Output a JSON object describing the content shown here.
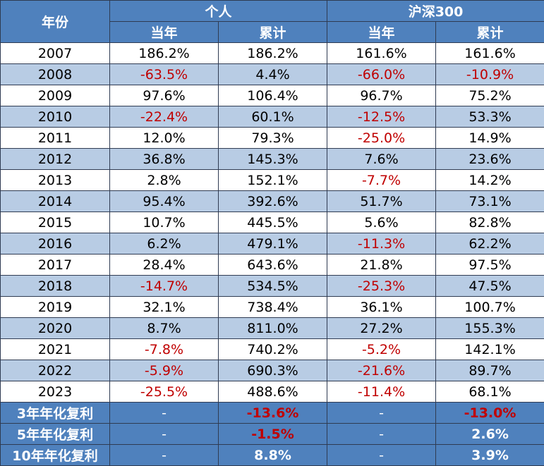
{
  "header": {
    "year_label": "年份",
    "group_personal": "个人",
    "group_index": "沪深300",
    "col_annual": "当年",
    "col_cumulative": "累计"
  },
  "rows": [
    {
      "year": "2007",
      "p_annual": "186.2%",
      "p_cum": "186.2%",
      "i_annual": "161.6%",
      "i_cum": "161.6%"
    },
    {
      "year": "2008",
      "p_annual": "-63.5%",
      "p_cum": "4.4%",
      "i_annual": "-66.0%",
      "i_cum": "-10.9%"
    },
    {
      "year": "2009",
      "p_annual": "97.6%",
      "p_cum": "106.4%",
      "i_annual": "96.7%",
      "i_cum": "75.2%"
    },
    {
      "year": "2010",
      "p_annual": "-22.4%",
      "p_cum": "60.1%",
      "i_annual": "-12.5%",
      "i_cum": "53.3%"
    },
    {
      "year": "2011",
      "p_annual": "12.0%",
      "p_cum": "79.3%",
      "i_annual": "-25.0%",
      "i_cum": "14.9%"
    },
    {
      "year": "2012",
      "p_annual": "36.8%",
      "p_cum": "145.3%",
      "i_annual": "7.6%",
      "i_cum": "23.6%"
    },
    {
      "year": "2013",
      "p_annual": "2.8%",
      "p_cum": "152.1%",
      "i_annual": "-7.7%",
      "i_cum": "14.2%"
    },
    {
      "year": "2014",
      "p_annual": "95.4%",
      "p_cum": "392.6%",
      "i_annual": "51.7%",
      "i_cum": "73.1%"
    },
    {
      "year": "2015",
      "p_annual": "10.7%",
      "p_cum": "445.5%",
      "i_annual": "5.6%",
      "i_cum": "82.8%"
    },
    {
      "year": "2016",
      "p_annual": "6.2%",
      "p_cum": "479.1%",
      "i_annual": "-11.3%",
      "i_cum": "62.2%"
    },
    {
      "year": "2017",
      "p_annual": "28.4%",
      "p_cum": "643.6%",
      "i_annual": "21.8%",
      "i_cum": "97.5%"
    },
    {
      "year": "2018",
      "p_annual": "-14.7%",
      "p_cum": "534.5%",
      "i_annual": "-25.3%",
      "i_cum": "47.5%"
    },
    {
      "year": "2019",
      "p_annual": "32.1%",
      "p_cum": "738.4%",
      "i_annual": "36.1%",
      "i_cum": "100.7%"
    },
    {
      "year": "2020",
      "p_annual": "8.7%",
      "p_cum": "811.0%",
      "i_annual": "27.2%",
      "i_cum": "155.3%"
    },
    {
      "year": "2021",
      "p_annual": "-7.8%",
      "p_cum": "740.2%",
      "i_annual": "-5.2%",
      "i_cum": "142.1%"
    },
    {
      "year": "2022",
      "p_annual": "-5.9%",
      "p_cum": "690.3%",
      "i_annual": "-21.6%",
      "i_cum": "89.7%"
    },
    {
      "year": "2023",
      "p_annual": "-25.5%",
      "p_cum": "488.6%",
      "i_annual": "-11.4%",
      "i_cum": "68.1%"
    }
  ],
  "summary": [
    {
      "label": "3年年化复利",
      "p_annual": "-",
      "p_cum": "-13.6%",
      "i_annual": "-",
      "i_cum": "-13.0%"
    },
    {
      "label": "5年年化复利",
      "p_annual": "-",
      "p_cum": "-1.5%",
      "i_annual": "-",
      "i_cum": "2.6%"
    },
    {
      "label": "10年年化复利",
      "p_annual": "-",
      "p_cum": "8.8%",
      "i_annual": "-",
      "i_cum": "3.9%"
    }
  ],
  "colors": {
    "header_bg": "#4f81bd",
    "band_bg": "#b8cce4",
    "negative_text": "#c00000",
    "header_text": "#ffffff"
  }
}
